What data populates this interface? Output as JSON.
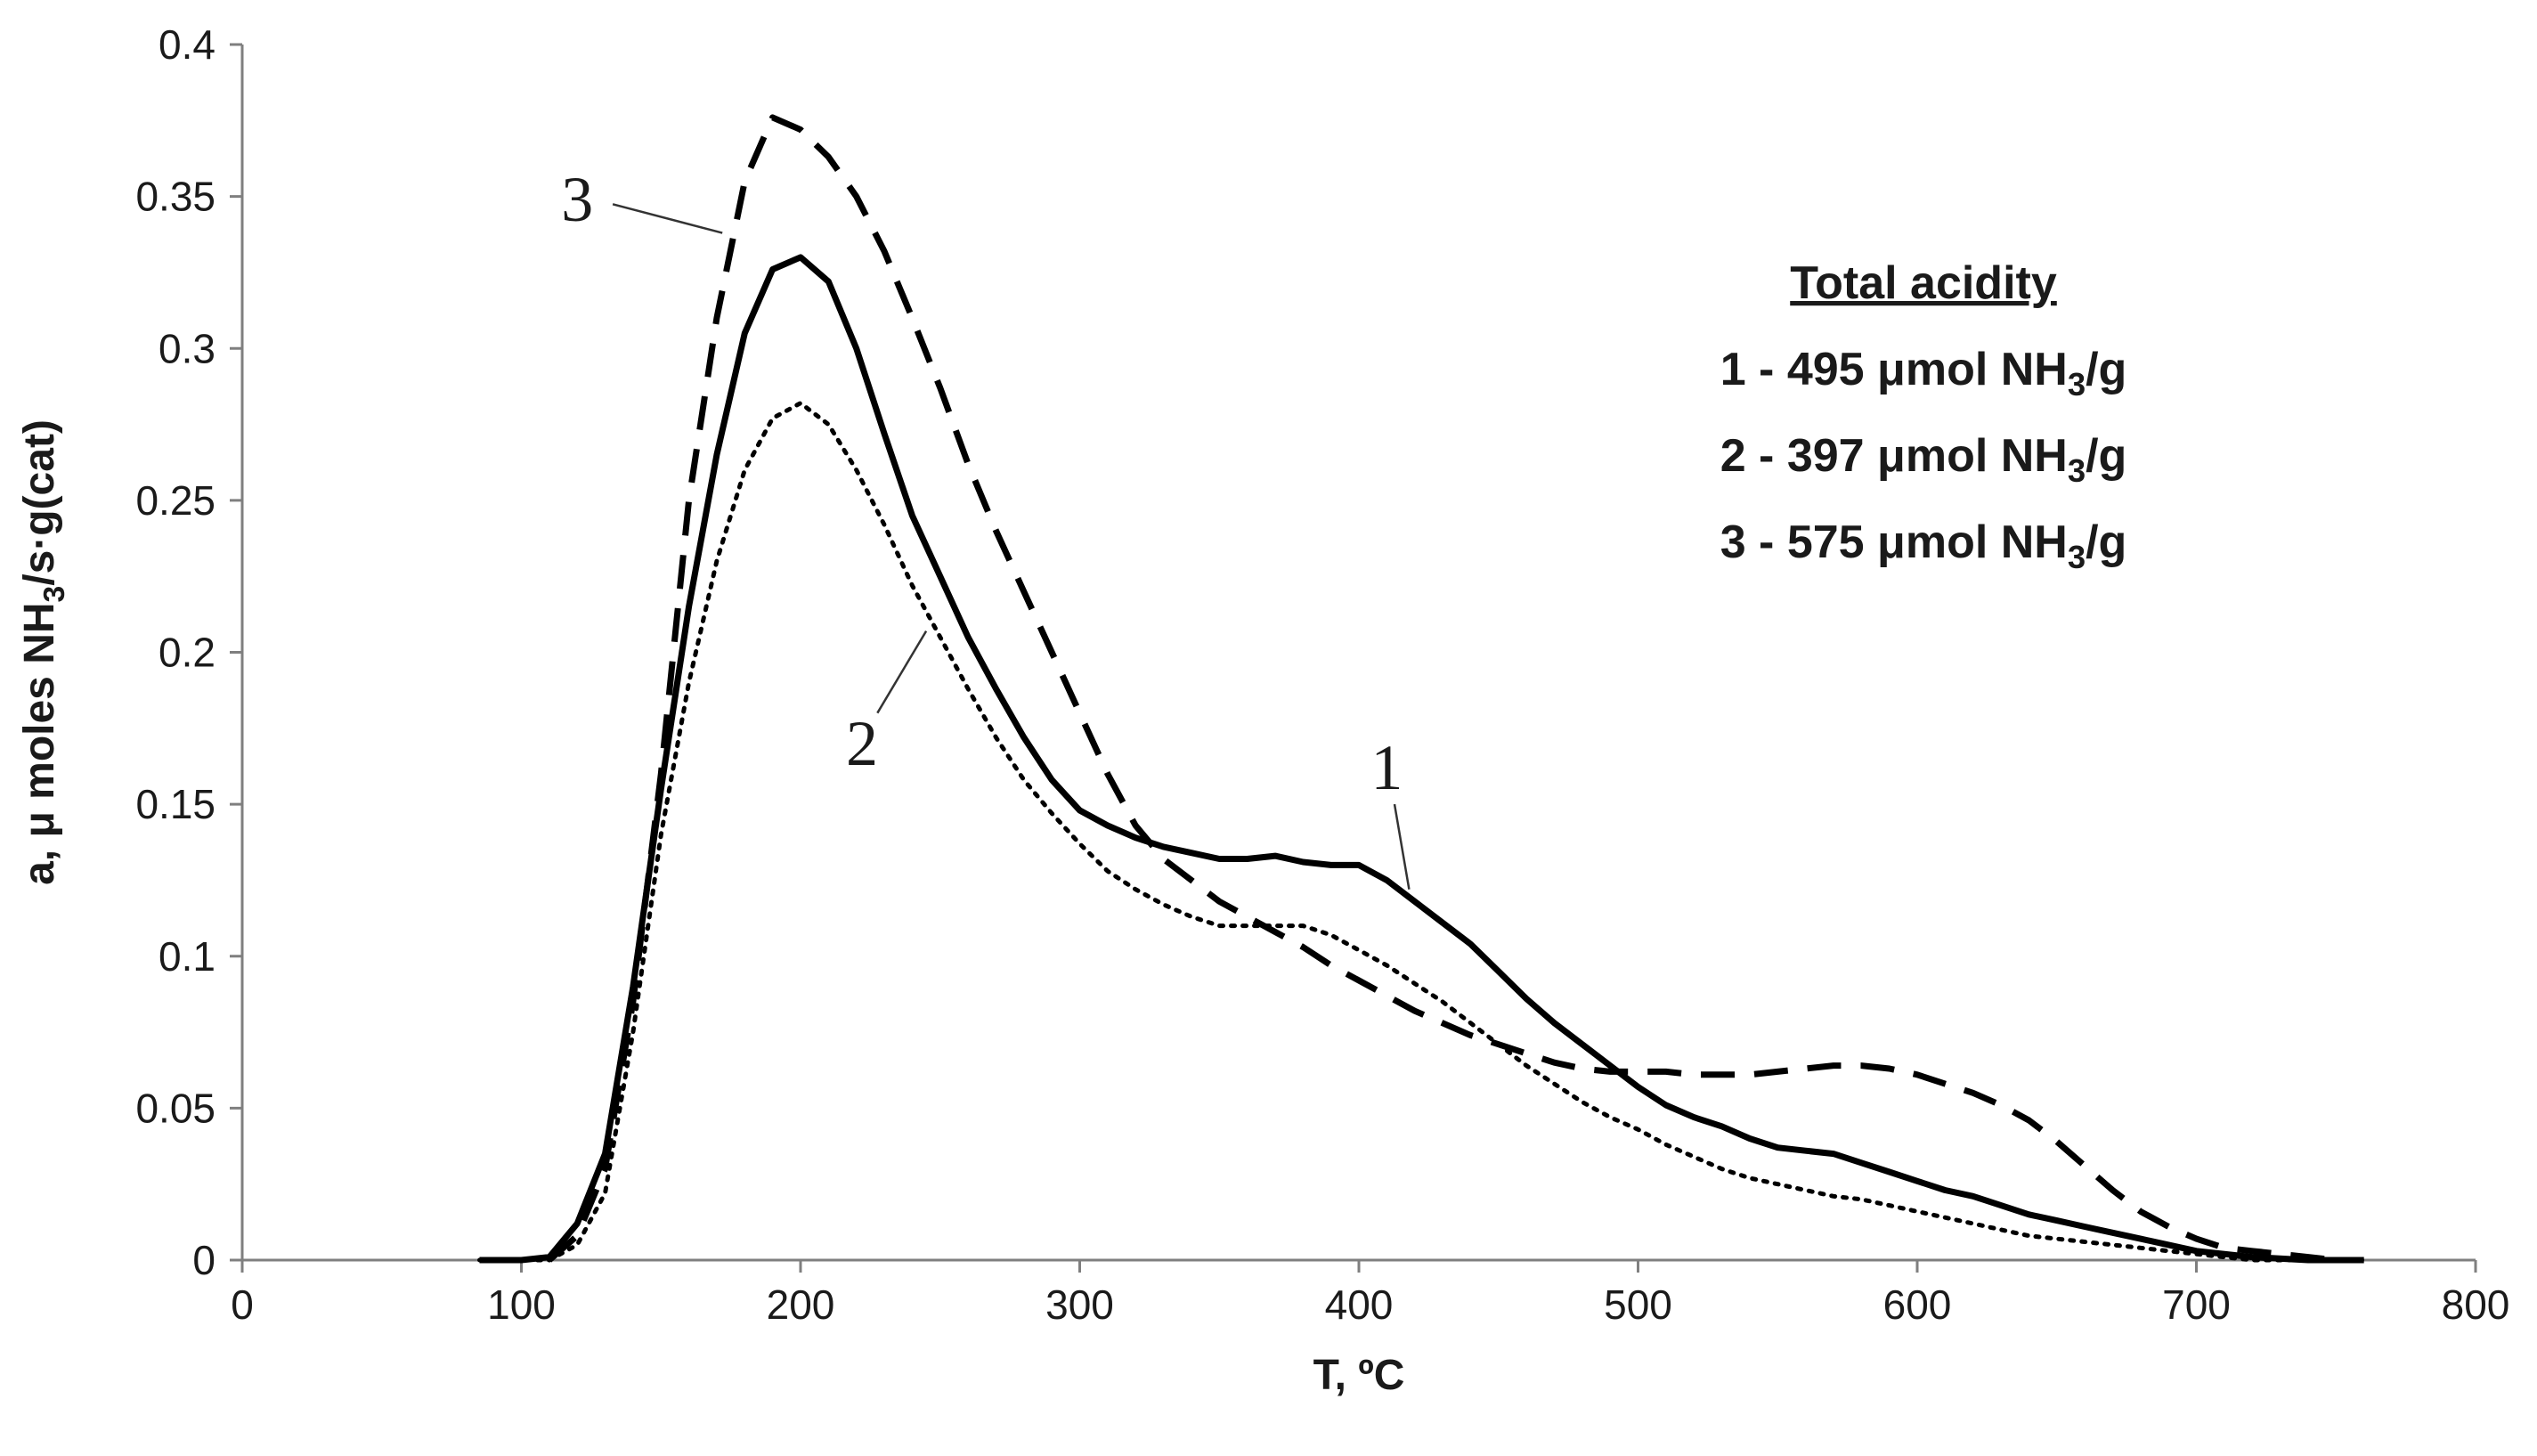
{
  "chart_data": {
    "type": "line",
    "title": "",
    "xlabel": "T, ºC",
    "ylabel_parts": {
      "before": "a, μ moles NH",
      "sub": "3",
      "after": "/s·g(cat)"
    },
    "xlim": [
      0,
      800
    ],
    "ylim": [
      0,
      0.4
    ],
    "xticks": [
      "0",
      "100",
      "200",
      "300",
      "400",
      "500",
      "600",
      "700",
      "800"
    ],
    "yticks": [
      "0",
      "0.05",
      "0.1",
      "0.15",
      "0.2",
      "0.25",
      "0.3",
      "0.35",
      "0.4"
    ],
    "grid": false,
    "legend": {
      "title": "Total acidity",
      "placement": "top-right",
      "entries": [
        {
          "before": "1 - 495 μmol NH",
          "sub": "3",
          "after": "/g"
        },
        {
          "before": "2 - 397 μmol NH",
          "sub": "3",
          "after": "/g"
        },
        {
          "before": "3 - 575 μmol NH",
          "sub": "3",
          "after": "/g"
        }
      ]
    },
    "series": [
      {
        "name": "1",
        "style": "solid",
        "color": "#000000",
        "points": [
          [
            85,
            0
          ],
          [
            100,
            0
          ],
          [
            110,
            0.001
          ],
          [
            120,
            0.012
          ],
          [
            130,
            0.035
          ],
          [
            140,
            0.09
          ],
          [
            150,
            0.155
          ],
          [
            160,
            0.215
          ],
          [
            170,
            0.265
          ],
          [
            180,
            0.305
          ],
          [
            190,
            0.326
          ],
          [
            200,
            0.33
          ],
          [
            210,
            0.322
          ],
          [
            220,
            0.3
          ],
          [
            230,
            0.272
          ],
          [
            240,
            0.245
          ],
          [
            250,
            0.225
          ],
          [
            260,
            0.205
          ],
          [
            270,
            0.188
          ],
          [
            280,
            0.172
          ],
          [
            290,
            0.158
          ],
          [
            300,
            0.148
          ],
          [
            310,
            0.143
          ],
          [
            320,
            0.139
          ],
          [
            330,
            0.136
          ],
          [
            340,
            0.134
          ],
          [
            350,
            0.132
          ],
          [
            360,
            0.132
          ],
          [
            370,
            0.133
          ],
          [
            380,
            0.131
          ],
          [
            390,
            0.13
          ],
          [
            400,
            0.13
          ],
          [
            410,
            0.125
          ],
          [
            420,
            0.118
          ],
          [
            430,
            0.111
          ],
          [
            440,
            0.104
          ],
          [
            450,
            0.095
          ],
          [
            460,
            0.086
          ],
          [
            470,
            0.078
          ],
          [
            480,
            0.071
          ],
          [
            490,
            0.064
          ],
          [
            500,
            0.057
          ],
          [
            510,
            0.051
          ],
          [
            520,
            0.047
          ],
          [
            530,
            0.044
          ],
          [
            540,
            0.04
          ],
          [
            550,
            0.037
          ],
          [
            560,
            0.036
          ],
          [
            570,
            0.035
          ],
          [
            580,
            0.032
          ],
          [
            590,
            0.029
          ],
          [
            600,
            0.026
          ],
          [
            610,
            0.023
          ],
          [
            620,
            0.021
          ],
          [
            630,
            0.018
          ],
          [
            640,
            0.015
          ],
          [
            650,
            0.013
          ],
          [
            660,
            0.011
          ],
          [
            670,
            0.009
          ],
          [
            680,
            0.007
          ],
          [
            690,
            0.005
          ],
          [
            700,
            0.003
          ],
          [
            710,
            0.002
          ],
          [
            720,
            0.001
          ],
          [
            740,
            0
          ],
          [
            760,
            0
          ]
        ],
        "label": {
          "text": "1",
          "pos": [
            410,
            0.155
          ],
          "anchor": [
            418,
            0.122
          ]
        }
      },
      {
        "name": "2",
        "style": "dotted",
        "color": "#000000",
        "points": [
          [
            85,
            0
          ],
          [
            100,
            0
          ],
          [
            110,
            0
          ],
          [
            120,
            0.005
          ],
          [
            130,
            0.022
          ],
          [
            140,
            0.075
          ],
          [
            150,
            0.14
          ],
          [
            160,
            0.19
          ],
          [
            170,
            0.23
          ],
          [
            180,
            0.26
          ],
          [
            190,
            0.277
          ],
          [
            200,
            0.282
          ],
          [
            210,
            0.275
          ],
          [
            220,
            0.26
          ],
          [
            230,
            0.242
          ],
          [
            240,
            0.222
          ],
          [
            250,
            0.205
          ],
          [
            260,
            0.188
          ],
          [
            270,
            0.172
          ],
          [
            280,
            0.158
          ],
          [
            290,
            0.147
          ],
          [
            300,
            0.137
          ],
          [
            310,
            0.128
          ],
          [
            320,
            0.122
          ],
          [
            330,
            0.117
          ],
          [
            340,
            0.113
          ],
          [
            350,
            0.11
          ],
          [
            360,
            0.11
          ],
          [
            370,
            0.11
          ],
          [
            380,
            0.11
          ],
          [
            390,
            0.107
          ],
          [
            400,
            0.102
          ],
          [
            410,
            0.097
          ],
          [
            420,
            0.091
          ],
          [
            430,
            0.085
          ],
          [
            440,
            0.078
          ],
          [
            450,
            0.071
          ],
          [
            460,
            0.064
          ],
          [
            470,
            0.058
          ],
          [
            480,
            0.052
          ],
          [
            490,
            0.047
          ],
          [
            500,
            0.043
          ],
          [
            510,
            0.038
          ],
          [
            520,
            0.034
          ],
          [
            530,
            0.03
          ],
          [
            540,
            0.027
          ],
          [
            550,
            0.025
          ],
          [
            560,
            0.023
          ],
          [
            570,
            0.021
          ],
          [
            580,
            0.02
          ],
          [
            590,
            0.018
          ],
          [
            600,
            0.016
          ],
          [
            610,
            0.014
          ],
          [
            620,
            0.012
          ],
          [
            630,
            0.01
          ],
          [
            640,
            0.008
          ],
          [
            650,
            0.007
          ],
          [
            660,
            0.006
          ],
          [
            670,
            0.005
          ],
          [
            680,
            0.004
          ],
          [
            690,
            0.003
          ],
          [
            700,
            0.002
          ],
          [
            710,
            0.001
          ],
          [
            720,
            0
          ],
          [
            760,
            0
          ]
        ],
        "label": {
          "text": "2",
          "pos": [
            222,
            0.163
          ],
          "anchor": [
            245,
            0.207
          ]
        }
      },
      {
        "name": "3",
        "style": "dashed",
        "color": "#000000",
        "points": [
          [
            110,
            0
          ],
          [
            120,
            0.008
          ],
          [
            130,
            0.03
          ],
          [
            140,
            0.085
          ],
          [
            150,
            0.16
          ],
          [
            160,
            0.25
          ],
          [
            170,
            0.31
          ],
          [
            180,
            0.355
          ],
          [
            190,
            0.376
          ],
          [
            200,
            0.372
          ],
          [
            210,
            0.363
          ],
          [
            220,
            0.35
          ],
          [
            230,
            0.332
          ],
          [
            240,
            0.31
          ],
          [
            250,
            0.287
          ],
          [
            260,
            0.262
          ],
          [
            270,
            0.24
          ],
          [
            280,
            0.22
          ],
          [
            290,
            0.2
          ],
          [
            300,
            0.18
          ],
          [
            310,
            0.16
          ],
          [
            320,
            0.143
          ],
          [
            330,
            0.132
          ],
          [
            340,
            0.125
          ],
          [
            350,
            0.118
          ],
          [
            360,
            0.113
          ],
          [
            370,
            0.108
          ],
          [
            380,
            0.103
          ],
          [
            390,
            0.097
          ],
          [
            400,
            0.092
          ],
          [
            410,
            0.087
          ],
          [
            420,
            0.082
          ],
          [
            430,
            0.078
          ],
          [
            440,
            0.074
          ],
          [
            450,
            0.071
          ],
          [
            460,
            0.068
          ],
          [
            470,
            0.065
          ],
          [
            480,
            0.063
          ],
          [
            490,
            0.062
          ],
          [
            500,
            0.062
          ],
          [
            510,
            0.062
          ],
          [
            520,
            0.061
          ],
          [
            530,
            0.061
          ],
          [
            540,
            0.061
          ],
          [
            550,
            0.062
          ],
          [
            560,
            0.063
          ],
          [
            570,
            0.064
          ],
          [
            580,
            0.064
          ],
          [
            590,
            0.063
          ],
          [
            600,
            0.061
          ],
          [
            610,
            0.058
          ],
          [
            620,
            0.055
          ],
          [
            630,
            0.051
          ],
          [
            640,
            0.046
          ],
          [
            650,
            0.039
          ],
          [
            660,
            0.031
          ],
          [
            670,
            0.023
          ],
          [
            680,
            0.016
          ],
          [
            690,
            0.011
          ],
          [
            700,
            0.007
          ],
          [
            710,
            0.004
          ],
          [
            720,
            0.003
          ],
          [
            730,
            0.002
          ],
          [
            740,
            0.001
          ],
          [
            750,
            0
          ],
          [
            760,
            0
          ]
        ],
        "label": {
          "text": "3",
          "pos": [
            120,
            0.342
          ],
          "anchor": [
            172,
            0.338
          ]
        }
      }
    ]
  }
}
